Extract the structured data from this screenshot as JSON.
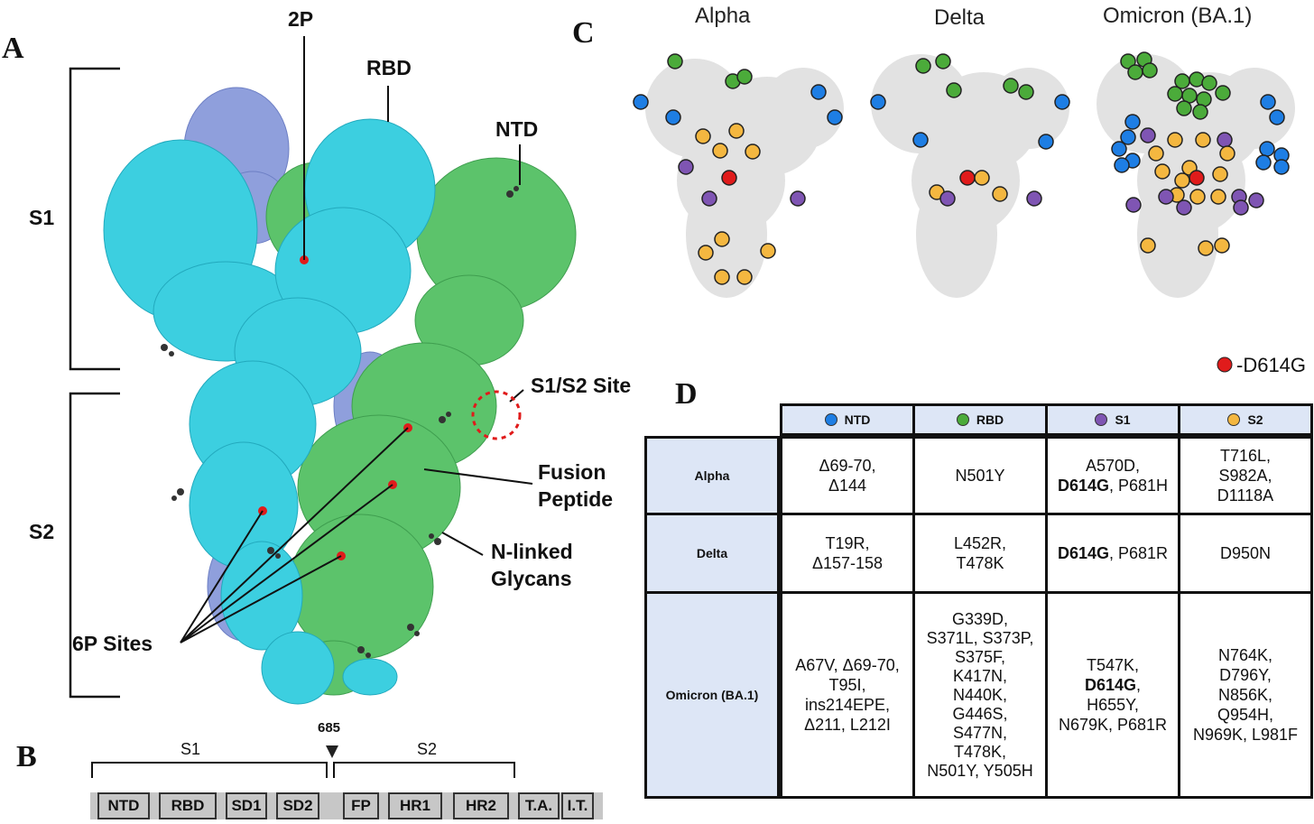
{
  "panels": {
    "a": "A",
    "b": "B",
    "c": "C",
    "d": "D"
  },
  "panel_a": {
    "label_2p": "2P",
    "label_rbd": "RBD",
    "label_ntd": "NTD",
    "label_s1": "S1",
    "label_s2": "S2",
    "label_s1s2_site": "S1/S2 Site",
    "label_fusion_1": "Fusion",
    "label_fusion_2": "Peptide",
    "label_glycans_1": "N-linked",
    "label_glycans_2": "Glycans",
    "label_6p": "6P Sites",
    "colors": {
      "protomer_cyan": "#3ccfe0",
      "protomer_green": "#5cc36b",
      "protomer_lilac": "#8f9fdc",
      "site_red": "#e01b1b"
    }
  },
  "panel_b": {
    "cleavage_position": "685",
    "s1_label": "S1",
    "s2_label": "S2",
    "domains": [
      "NTD",
      "RBD",
      "SD1",
      "SD2",
      "FP",
      "HR1",
      "HR2",
      "T.A.",
      "I.T."
    ]
  },
  "panel_c": {
    "variants": [
      "Alpha",
      "Delta",
      "Omicron (BA.1)"
    ],
    "legend_label": "-D614G",
    "colors": {
      "ntd": "#1e7ee4",
      "rbd": "#4bab3a",
      "s1": "#7f55b3",
      "s2": "#f4b740",
      "d614g": "#e01b1b"
    }
  },
  "panel_d": {
    "columns": [
      {
        "label": "NTD",
        "color": "#1e7ee4"
      },
      {
        "label": "RBD",
        "color": "#4bab3a"
      },
      {
        "label": "S1",
        "color": "#7f55b3"
      },
      {
        "label": "S2",
        "color": "#f4b740"
      }
    ],
    "rows": [
      {
        "variant": "Alpha",
        "ntd": [
          "Δ69-70,",
          "Δ144"
        ],
        "rbd": [
          "N501Y"
        ],
        "s1": [
          [
            "A570D,",
            ""
          ],
          [
            "D614G",
            ", P681H"
          ]
        ],
        "s2": [
          "T716L,",
          "S982A,",
          "D1118A"
        ]
      },
      {
        "variant": "Delta",
        "ntd": [
          "T19R,",
          "Δ157-158"
        ],
        "rbd": [
          "L452R,",
          "T478K"
        ],
        "s1": [
          [
            "D614G",
            ", P681R"
          ]
        ],
        "s2": [
          "D950N"
        ]
      },
      {
        "variant": "Omicron (BA.1)",
        "ntd": [
          "A67V, Δ69-70,",
          "T95I,",
          "ins214EPE,",
          "Δ211, L212I"
        ],
        "rbd": [
          "G339D,",
          "S371L, S373P,",
          "S375F,",
          "K417N,",
          "N440K,",
          "G446S,",
          "S477N,",
          "T478K,",
          "N501Y, Y505H"
        ],
        "s1": [
          [
            "T547K,",
            ""
          ],
          [
            "D614G",
            ","
          ],
          [
            "H655Y,",
            ""
          ],
          [
            "N679K, P681R",
            ""
          ]
        ],
        "s2": [
          "N764K,",
          "D796Y,",
          "N856K,",
          "Q954H,",
          "N969K, L981F"
        ]
      }
    ]
  }
}
